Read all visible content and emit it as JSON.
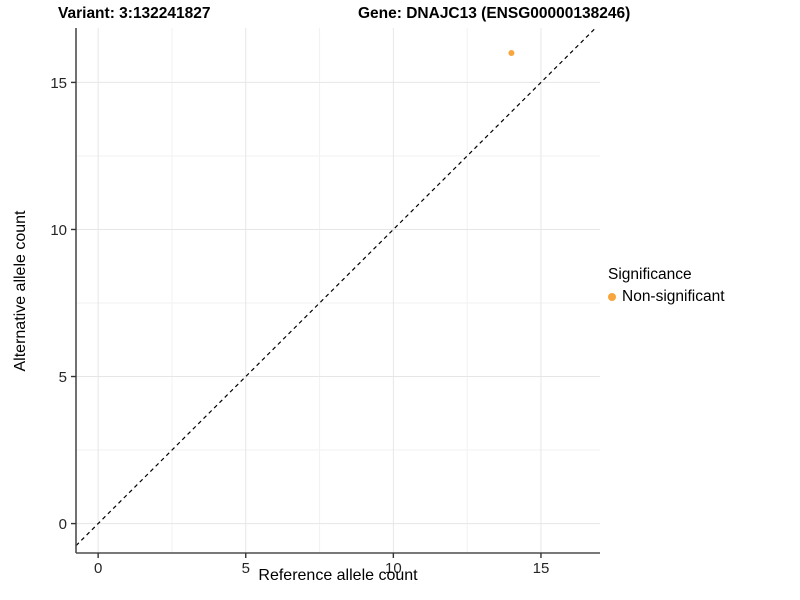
{
  "titles": {
    "variant": "Variant: 3:132241827",
    "gene": "Gene: DNAJC13 (ENSG00000138246)"
  },
  "chart_data": {
    "type": "scatter",
    "xlabel": "Reference allele count",
    "ylabel": "Alternative allele count",
    "xlim": [
      -0.75,
      17
    ],
    "ylim": [
      -1,
      16.85
    ],
    "x_ticks": [
      0,
      5,
      10,
      15
    ],
    "y_ticks": [
      0,
      5,
      10,
      15
    ],
    "x_minor_ticks": [
      2.5,
      7.5,
      12.5
    ],
    "y_minor_ticks": [
      2.5,
      7.5,
      12.5
    ],
    "grid": {
      "on": true,
      "major_color": "#e6e6e6",
      "minor_color": "#f2f2f2"
    },
    "axis": {
      "line_color": "#4d4d4d",
      "tick_color": "#333333",
      "tick_label_color": "#262626"
    },
    "identity_line": {
      "type": "dashed",
      "color": "#000000",
      "slope": 1,
      "intercept": 0
    },
    "series": [
      {
        "name": "Non-significant",
        "color": "#F8A53D",
        "points": [
          {
            "x": 14,
            "y": 16
          }
        ]
      }
    ],
    "legend": {
      "title": "Significance",
      "position": "right",
      "items": [
        {
          "label": "Non-significant",
          "color": "#F8A53D"
        }
      ]
    }
  }
}
